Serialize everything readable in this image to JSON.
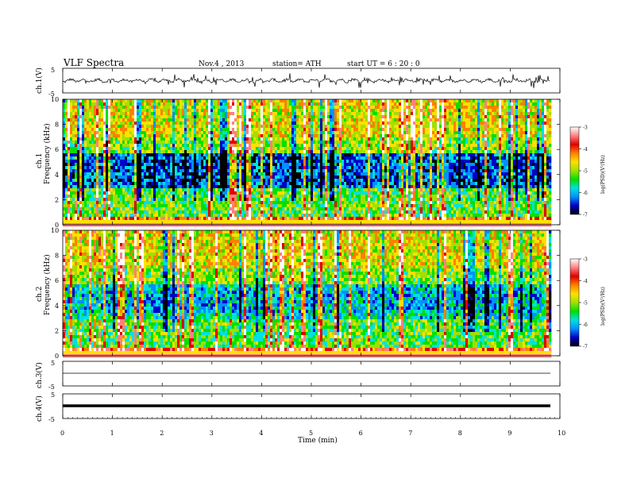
{
  "header": {
    "title": "VLF Spectra",
    "date": "Nov.4  , 2013",
    "station": "station= ATH",
    "start_ut": "start  UT =   6  : 20 : 0"
  },
  "chart_data": [
    {
      "type": "line",
      "id": "ch1",
      "ylabel": "ch.1(V)",
      "ylim": [
        -5,
        5
      ],
      "yticks": [
        "5",
        "-5"
      ],
      "xlim": [
        0,
        10
      ],
      "trace": "noisy waveform, baseline near 0 V with frequent spikes toward ±3 V"
    },
    {
      "type": "heatmap",
      "id": "ch1-spec",
      "ylabel_top": "ch.1",
      "ylabel": "Frequency  (kHz)",
      "ylim": [
        0,
        10
      ],
      "yticks": [
        "0",
        "2",
        "4",
        "6",
        "8",
        "10"
      ],
      "colorbar": {
        "label": "log(PSD)(V²/Hz)",
        "ticks": [
          "-3",
          "-4",
          "-5",
          "-6",
          "-7"
        ],
        "range": [
          -7,
          -3
        ],
        "colors": [
          "#000000",
          "#0000c8",
          "#0090ff",
          "#00e0e0",
          "#00e000",
          "#a0e000",
          "#ffe000",
          "#ff8000",
          "#e00000",
          "#ff8080",
          "#ffffff"
        ]
      }
    },
    {
      "type": "heatmap",
      "id": "ch2-spec",
      "ylabel_top": "ch.2",
      "ylabel": "Frequency  (kHz)",
      "ylim": [
        0,
        10
      ],
      "yticks": [
        "0",
        "2",
        "4",
        "6",
        "8",
        "10"
      ],
      "colorbar": {
        "label": "log(PSD)(V²/Hz)",
        "ticks": [
          "-3",
          "-4",
          "-5",
          "-6",
          "-7"
        ],
        "range": [
          -7,
          -3
        ]
      }
    },
    {
      "type": "line",
      "id": "ch3",
      "ylabel": "ch.3(V)",
      "ylim": [
        -5,
        5
      ],
      "yticks": [
        "5",
        "-5"
      ],
      "trace": "flat line near 0 V"
    },
    {
      "type": "line",
      "id": "ch4",
      "ylabel": "ch.4(V)",
      "ylim": [
        -5,
        5
      ],
      "yticks": [
        "5",
        "-5"
      ],
      "trace": "thick flat line near 0 V"
    }
  ],
  "x_axis": {
    "label": "Time  (min)",
    "ticks": [
      "0",
      "1",
      "2",
      "3",
      "4",
      "5",
      "6",
      "7",
      "8",
      "9",
      "10"
    ],
    "range": [
      0,
      10
    ],
    "data_end": 9.8
  }
}
